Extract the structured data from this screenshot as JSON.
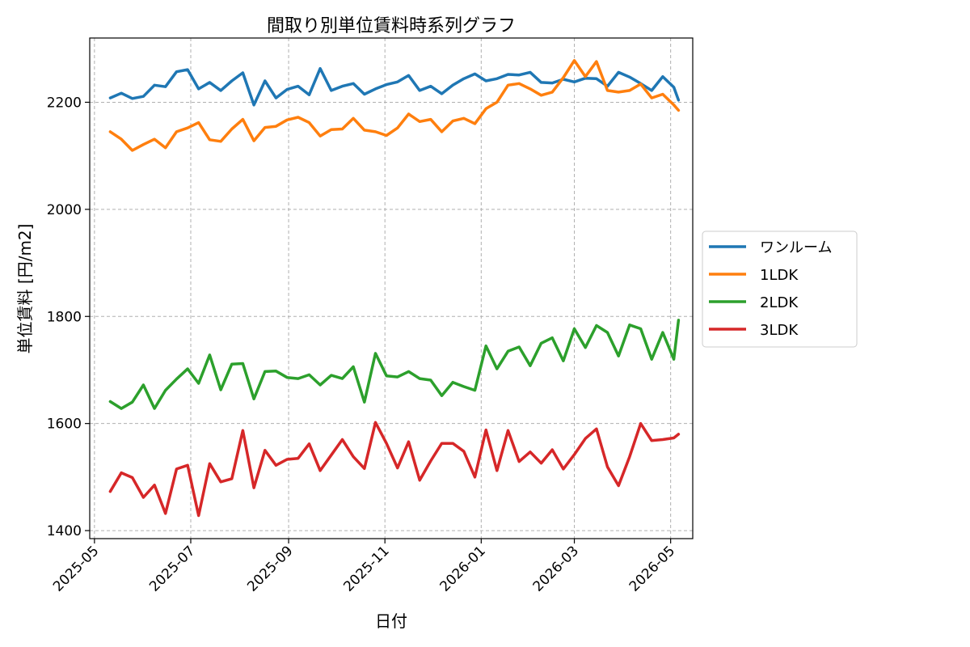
{
  "chart_data": {
    "type": "line",
    "title": "間取り別単位賃料時系列グラフ",
    "xlabel": "日付",
    "ylabel": "単位賃料 [円/m2]",
    "xlim": [
      "2025-04-28",
      "2026-05-15"
    ],
    "ylim": [
      1385,
      2320
    ],
    "x_ticks": [
      {
        "date": "2025-05-01",
        "label": "2025-05"
      },
      {
        "date": "2025-07-01",
        "label": "2025-07"
      },
      {
        "date": "2025-09-01",
        "label": "2025-09"
      },
      {
        "date": "2025-11-01",
        "label": "2025-11"
      },
      {
        "date": "2026-01-01",
        "label": "2026-01"
      },
      {
        "date": "2026-03-01",
        "label": "2026-03"
      },
      {
        "date": "2026-05-01",
        "label": "2026-05"
      }
    ],
    "y_ticks": [
      1400,
      1600,
      1800,
      2000,
      2200
    ],
    "grid": true,
    "legend_position": "right-outside",
    "x": [
      "2025-05-11",
      "2025-05-18",
      "2025-05-25",
      "2025-06-01",
      "2025-06-08",
      "2025-06-15",
      "2025-06-22",
      "2025-06-29",
      "2025-07-06",
      "2025-07-13",
      "2025-07-20",
      "2025-07-27",
      "2025-08-03",
      "2025-08-10",
      "2025-08-17",
      "2025-08-24",
      "2025-08-31",
      "2025-09-07",
      "2025-09-14",
      "2025-09-21",
      "2025-09-28",
      "2025-10-05",
      "2025-10-12",
      "2025-10-19",
      "2025-10-26",
      "2025-11-02",
      "2025-11-09",
      "2025-11-16",
      "2025-11-23",
      "2025-11-30",
      "2025-12-07",
      "2025-12-14",
      "2025-12-21",
      "2025-12-28",
      "2026-01-04",
      "2026-01-11",
      "2026-01-18",
      "2026-01-25",
      "2026-02-01",
      "2026-02-08",
      "2026-02-15",
      "2026-02-22",
      "2026-03-01",
      "2026-03-08",
      "2026-03-15",
      "2026-03-22",
      "2026-03-29",
      "2026-04-05",
      "2026-04-12",
      "2026-04-19",
      "2026-04-26",
      "2026-05-03",
      "2026-05-06"
    ],
    "series": [
      {
        "name": "ワンルーム",
        "color": "#1f77b4",
        "values": [
          2208,
          2217,
          2207,
          2211,
          2232,
          2229,
          2257,
          2261,
          2225,
          2237,
          2222,
          2240,
          2255,
          2195,
          2240,
          2208,
          2224,
          2230,
          2214,
          2263,
          2222,
          2230,
          2235,
          2215,
          2225,
          2233,
          2238,
          2250,
          2222,
          2230,
          2216,
          2232,
          2244,
          2253,
          2240,
          2244,
          2252,
          2251,
          2256,
          2237,
          2236,
          2243,
          2238,
          2245,
          2244,
          2230,
          2256,
          2247,
          2235,
          2222,
          2248,
          2228,
          2204
        ]
      },
      {
        "name": "1LDK",
        "color": "#ff7f0e",
        "values": [
          2145,
          2131,
          2110,
          2121,
          2131,
          2115,
          2145,
          2152,
          2162,
          2130,
          2127,
          2150,
          2168,
          2128,
          2153,
          2155,
          2167,
          2172,
          2162,
          2137,
          2149,
          2150,
          2170,
          2148,
          2145,
          2138,
          2152,
          2178,
          2164,
          2168,
          2145,
          2165,
          2170,
          2160,
          2188,
          2200,
          2232,
          2235,
          2225,
          2213,
          2219,
          2246,
          2278,
          2248,
          2276,
          2222,
          2219,
          2222,
          2234,
          2208,
          2215,
          2195,
          2185
        ]
      },
      {
        "name": "2LDK",
        "color": "#2ca02c",
        "values": [
          1641,
          1628,
          1640,
          1672,
          1628,
          1662,
          1683,
          1702,
          1675,
          1728,
          1663,
          1711,
          1712,
          1646,
          1697,
          1698,
          1686,
          1684,
          1691,
          1672,
          1690,
          1684,
          1706,
          1640,
          1731,
          1689,
          1687,
          1697,
          1684,
          1681,
          1652,
          1677,
          1669,
          1662,
          1745,
          1702,
          1735,
          1743,
          1708,
          1750,
          1760,
          1717,
          1777,
          1742,
          1783,
          1770,
          1726,
          1784,
          1777,
          1720,
          1770,
          1720,
          1793
        ]
      },
      {
        "name": "3LDK",
        "color": "#d62728",
        "values": [
          1473,
          1508,
          1499,
          1462,
          1485,
          1432,
          1515,
          1522,
          1428,
          1525,
          1491,
          1497,
          1587,
          1480,
          1550,
          1522,
          1533,
          1535,
          1562,
          1512,
          1541,
          1570,
          1538,
          1516,
          1602,
          1563,
          1517,
          1566,
          1494,
          1530,
          1563,
          1563,
          1548,
          1500,
          1588,
          1512,
          1587,
          1529,
          1547,
          1526,
          1551,
          1515,
          1542,
          1572,
          1590,
          1519,
          1484,
          1538,
          1600,
          1568,
          1570,
          1573,
          1580
        ]
      }
    ]
  }
}
